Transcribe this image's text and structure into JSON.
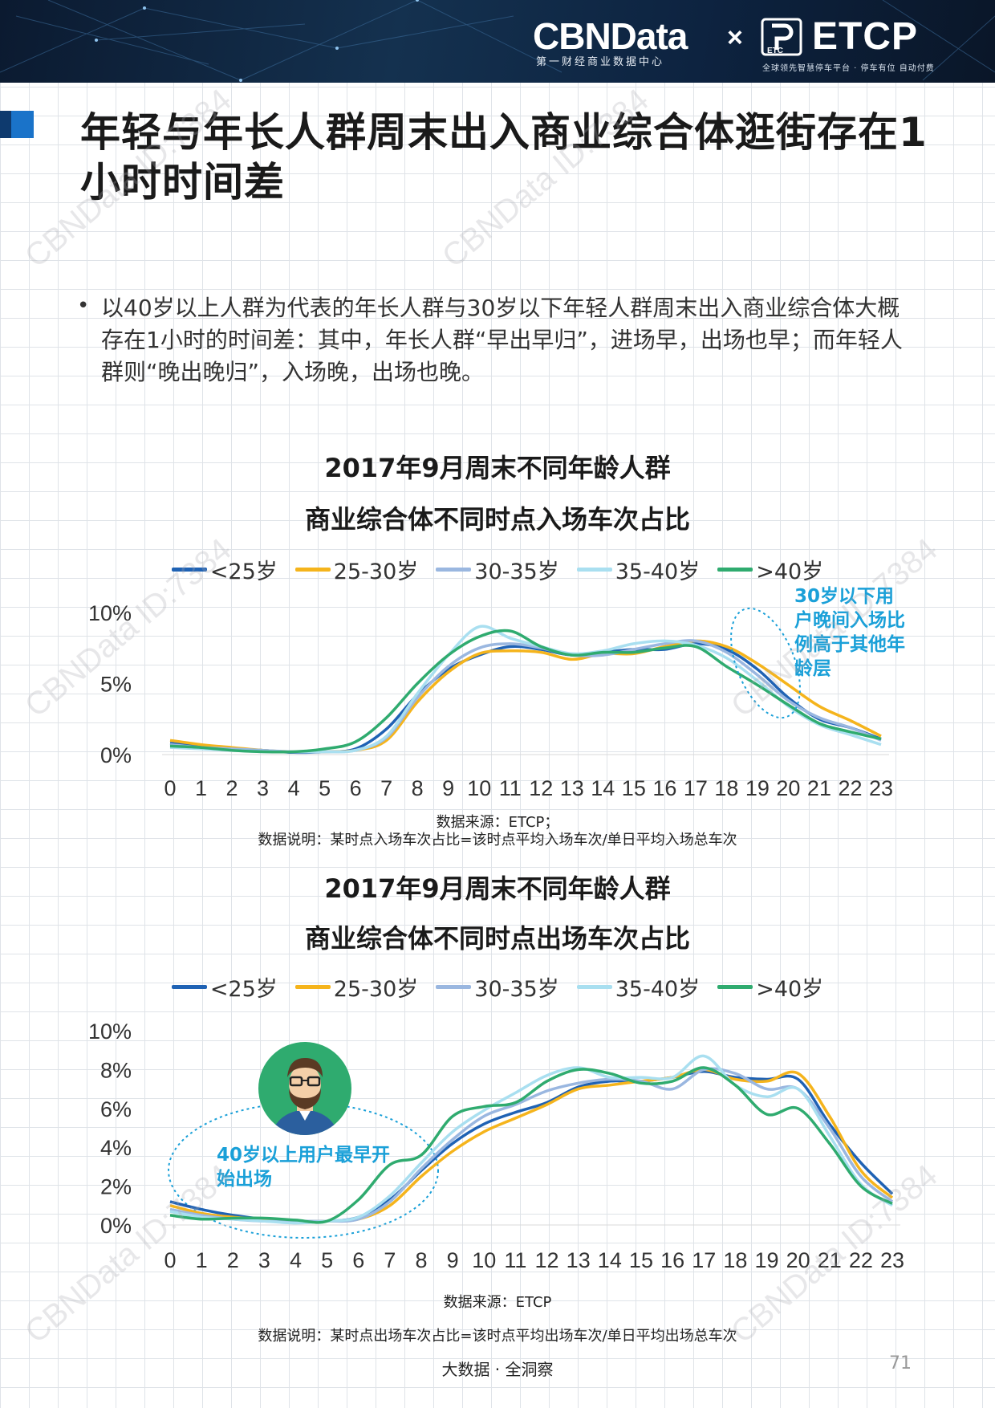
{
  "header": {
    "brand_primary": "CBNData",
    "brand_primary_sub": "第一财经商业数据中心",
    "brand_separator": "×",
    "brand_partner": "ETCP",
    "brand_partner_sub": "全球领先智慧停车平台 · 停车有位  自动付费"
  },
  "page": {
    "title": "年轻与年长人群周末出入商业综合体逛街存在1小时时间差",
    "bullet": "•",
    "intro": "以40岁以上人群为代表的年长人群与30岁以下年轻人群周末出入商业综合体大概存在1小时的时间差：其中，年长人群“早出早归”，进场早，出场也早；而年轻人群则“晚出晚归”，入场晚，出场也晚。",
    "footer": "大数据 · 全洞察",
    "page_number": "71",
    "watermark": "CBNData ID:7384"
  },
  "colors": {
    "s1": "#1f62b4",
    "s2": "#f5b41c",
    "s3": "#9ab7e0",
    "s4": "#a9dff0",
    "s5": "#2fab6f",
    "annotation": "#1aa0d8",
    "header_bg": "#0d2340",
    "accent": "#1a73c9"
  },
  "chart_data": [
    {
      "type": "line",
      "title_line1": "2017年9月周末不同年龄人群",
      "title_line2": "商业综合体不同时点入场车次占比",
      "x": [
        "0",
        "1",
        "2",
        "3",
        "4",
        "5",
        "6",
        "7",
        "8",
        "9",
        "10",
        "11",
        "12",
        "13",
        "14",
        "15",
        "16",
        "17",
        "18",
        "19",
        "20",
        "21",
        "22",
        "23"
      ],
      "yticks": [
        "0%",
        "5%",
        "10%"
      ],
      "ylim": [
        0,
        10
      ],
      "series": [
        {
          "name": "<25岁",
          "values": [
            0.8,
            0.6,
            0.4,
            0.3,
            0.15,
            0.2,
            0.4,
            1.8,
            4.2,
            6.0,
            7.0,
            7.6,
            7.4,
            7.0,
            7.2,
            7.4,
            7.4,
            7.8,
            7.4,
            6.0,
            4.0,
            2.5,
            1.9,
            1.1
          ]
        },
        {
          "name": "25-30岁",
          "values": [
            1.0,
            0.7,
            0.5,
            0.3,
            0.2,
            0.2,
            0.3,
            1.0,
            3.7,
            5.8,
            7.1,
            7.3,
            7.2,
            6.7,
            7.1,
            7.1,
            7.6,
            8.0,
            7.6,
            6.4,
            4.9,
            3.4,
            2.4,
            1.3
          ]
        },
        {
          "name": "30-35岁",
          "values": [
            0.7,
            0.5,
            0.4,
            0.3,
            0.2,
            0.2,
            0.3,
            1.2,
            4.0,
            6.2,
            7.5,
            7.8,
            7.5,
            7.0,
            7.0,
            7.4,
            7.8,
            8.0,
            7.2,
            5.6,
            3.8,
            2.6,
            1.9,
            1.0
          ]
        },
        {
          "name": "35-40岁",
          "values": [
            0.5,
            0.4,
            0.3,
            0.2,
            0.2,
            0.2,
            0.3,
            1.3,
            4.3,
            7.0,
            9.0,
            8.2,
            7.6,
            7.1,
            7.3,
            7.8,
            8.0,
            7.7,
            6.8,
            5.2,
            3.4,
            2.1,
            1.4,
            0.7
          ]
        },
        {
          "name": ">40岁",
          "values": [
            0.6,
            0.5,
            0.3,
            0.2,
            0.2,
            0.4,
            0.9,
            2.6,
            5.0,
            7.0,
            8.3,
            8.7,
            7.6,
            7.0,
            7.2,
            7.2,
            7.5,
            7.6,
            6.2,
            4.9,
            3.5,
            2.2,
            1.6,
            1.1
          ]
        }
      ],
      "annotation": "30岁以下用户晚间入场比例高于其他年龄层",
      "source": "数据来源：ETCP；",
      "note": "数据说明：某时点入场车次占比=该时点平均入场车次/单日平均入场总车次"
    },
    {
      "type": "line",
      "title_line1": "2017年9月周末不同年龄人群",
      "title_line2": "商业综合体不同时点出场车次占比",
      "x": [
        "0",
        "1",
        "2",
        "3",
        "4",
        "5",
        "6",
        "7",
        "8",
        "9",
        "10",
        "11",
        "12",
        "13",
        "14",
        "15",
        "16",
        "17",
        "18",
        "19",
        "20",
        "21",
        "22",
        "23"
      ],
      "yticks": [
        "0%",
        "2%",
        "4%",
        "6%",
        "8%",
        "10%"
      ],
      "ylim": [
        0,
        10
      ],
      "series": [
        {
          "name": "<25岁",
          "values": [
            1.2,
            0.8,
            0.5,
            0.3,
            0.2,
            0.2,
            0.4,
            1.3,
            2.8,
            4.2,
            5.2,
            5.8,
            6.3,
            7.1,
            7.4,
            7.4,
            7.6,
            7.9,
            7.6,
            7.5,
            7.5,
            5.2,
            3.2,
            1.6
          ]
        },
        {
          "name": "25-30岁",
          "values": [
            1.0,
            0.6,
            0.4,
            0.3,
            0.2,
            0.2,
            0.3,
            1.0,
            2.5,
            3.8,
            4.8,
            5.5,
            6.2,
            7.0,
            7.2,
            7.4,
            7.6,
            8.0,
            7.5,
            7.4,
            7.8,
            5.6,
            2.8,
            1.4
          ]
        },
        {
          "name": "30-35岁",
          "values": [
            0.8,
            0.5,
            0.3,
            0.2,
            0.2,
            0.2,
            0.3,
            1.2,
            2.9,
            4.4,
            5.6,
            6.2,
            6.9,
            7.3,
            7.5,
            7.4,
            7.0,
            8.0,
            7.8,
            7.0,
            7.0,
            5.0,
            2.5,
            1.2
          ]
        },
        {
          "name": "35-40岁",
          "values": [
            0.7,
            0.4,
            0.3,
            0.2,
            0.1,
            0.2,
            0.4,
            1.5,
            3.2,
            4.8,
            5.9,
            6.8,
            7.7,
            8.1,
            7.6,
            7.6,
            7.6,
            8.7,
            7.2,
            6.6,
            7.0,
            4.6,
            2.1,
            1.0
          ]
        },
        {
          "name": ">40岁",
          "values": [
            0.5,
            0.3,
            0.35,
            0.35,
            0.25,
            0.2,
            1.3,
            3.1,
            3.6,
            5.6,
            6.1,
            6.3,
            7.4,
            8.0,
            7.8,
            7.3,
            7.4,
            8.1,
            7.2,
            5.7,
            6.0,
            4.2,
            2.0,
            1.1
          ]
        }
      ],
      "annotation": "40岁以上用户最早开始出场",
      "source": "数据来源：ETCP",
      "note": "数据说明：某时点出场车次占比=该时点平均出场车次/单日平均出场总车次"
    }
  ]
}
